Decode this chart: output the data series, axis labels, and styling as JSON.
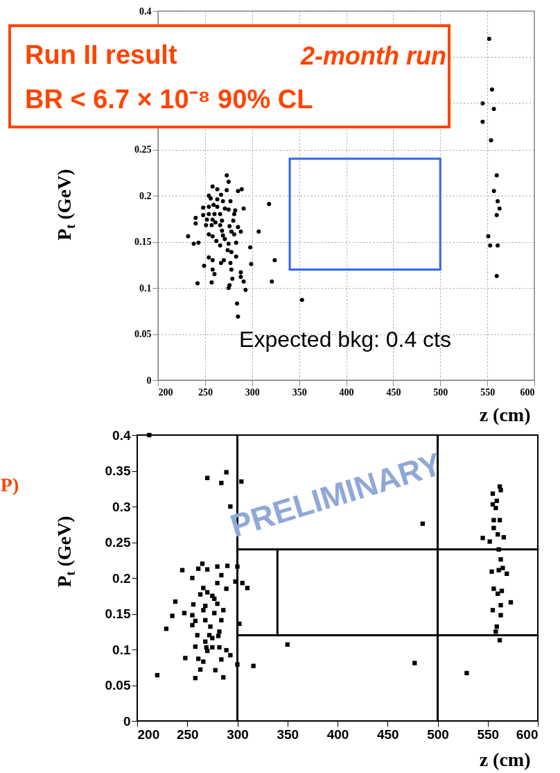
{
  "chart_data": [
    {
      "type": "scatter",
      "xlabel": "z (cm)",
      "ylabel": "P$_{t}$ (GeV)",
      "xlim": [
        200,
        600
      ],
      "ylim": [
        0,
        0.4
      ],
      "xticks": [
        200,
        250,
        300,
        350,
        400,
        450,
        500,
        550,
        600
      ],
      "yticks": [
        0,
        0.05,
        0.1,
        0.15,
        0.2,
        0.25,
        {
          "value": 0.3,
          "label": null
        },
        {
          "value": 0.35,
          "label": null
        },
        0.4
      ],
      "grid": true,
      "annotations": [
        "Run II result",
        "2-month run",
        "BR < 6.7 × 10⁻⁸ 90% CL",
        "Expected bkg: 0.4 cts"
      ],
      "series": [
        {
          "color": "#000000",
          "marker": "circle",
          "x": [
            273,
            275,
            258,
            263,
            273,
            285,
            289,
            267,
            254,
            256,
            263,
            269,
            277,
            259,
            248,
            254,
            263,
            271,
            275,
            282,
            291,
            248,
            254,
            260,
            266,
            281,
            240,
            252,
            258,
            261,
            268,
            280,
            240,
            251,
            257,
            266,
            276,
            285,
            268,
            278,
            288,
            307,
            232,
            254,
            258,
            269,
            281,
            238,
            243,
            262,
            266,
            271,
            275,
            283,
            298,
            274,
            278,
            254,
            258,
            267,
            270,
            277,
            283,
            299,
            249,
            258,
            260,
            278,
            288,
            288,
            279,
            242,
            257,
            291,
            276,
            275,
            293,
            284,
            285,
            318,
            324,
            321,
            353,
            552,
            555,
            545,
            557,
            545,
            554,
            560,
            557,
            561,
            563,
            560,
            551,
            553,
            561,
            560
          ],
          "values": [
            0.222,
            0.215,
            0.21,
            0.207,
            0.206,
            0.205,
            0.207,
            0.201,
            0.2,
            0.197,
            0.196,
            0.194,
            0.194,
            0.19,
            0.187,
            0.188,
            0.188,
            0.186,
            0.185,
            0.184,
            0.186,
            0.179,
            0.18,
            0.18,
            0.18,
            0.18,
            0.176,
            0.174,
            0.174,
            0.171,
            0.173,
            0.173,
            0.17,
            0.168,
            0.168,
            0.168,
            0.167,
            0.166,
            0.162,
            0.161,
            0.161,
            0.161,
            0.156,
            0.158,
            0.156,
            0.157,
            0.158,
            0.148,
            0.149,
            0.151,
            0.146,
            0.153,
            0.148,
            0.149,
            0.144,
            0.141,
            0.139,
            0.133,
            0.13,
            0.127,
            0.13,
            0.127,
            0.134,
            0.126,
            0.124,
            0.12,
            0.115,
            0.12,
            0.117,
            0.112,
            0.11,
            0.105,
            0.106,
            0.107,
            0.103,
            0.1,
            0.098,
            0.083,
            0.069,
            0.191,
            0.13,
            0.107,
            0.087,
            0.37,
            0.315,
            0.3,
            0.294,
            0.28,
            0.26,
            0.222,
            0.205,
            0.194,
            0.186,
            0.179,
            0.156,
            0.146,
            0.146,
            0.113
          ]
        },
        {
          "type": "line",
          "color": "#3366ee",
          "x": [
            340,
            500
          ],
          "values": [
            0.12,
            0.12
          ]
        },
        {
          "type": "line",
          "color": "#3366ee",
          "x": [
            340,
            500
          ],
          "values": [
            0.24,
            0.24
          ]
        },
        {
          "type": "line",
          "color": "#3366ee",
          "x": [
            340,
            340
          ],
          "values": [
            0.12,
            0.24
          ]
        },
        {
          "type": "line",
          "color": "#3366ee",
          "x": [
            500,
            500
          ],
          "values": [
            0.12,
            0.24
          ]
        }
      ]
    },
    {
      "type": "scatter",
      "xlabel": "z (cm)",
      "ylabel": "P$_{t}$ (GeV)",
      "xlim": [
        200,
        600
      ],
      "ylim": [
        0,
        0.4
      ],
      "xticks": [
        200,
        250,
        300,
        350,
        400,
        450,
        500,
        550,
        600
      ],
      "yticks": [
        0,
        0.05,
        0.1,
        0.15,
        0.2,
        0.25,
        0.3,
        0.35,
        0.4
      ],
      "annotations": [
        "PRELIMINARY",
        "P)"
      ],
      "ref_lines": [
        {
          "axis": "x",
          "value": 300,
          "color": "#000000"
        },
        {
          "axis": "x",
          "value": 500,
          "color": "#000000"
        }
      ],
      "series": [
        {
          "color": "#000000",
          "marker": "square",
          "x": [
            212,
            289,
            270,
            284,
            304,
            293,
            265,
            261,
            270,
            245,
            280,
            290,
            300,
            284,
            255,
            298,
            305,
            310,
            266,
            280,
            289,
            263,
            275,
            238,
            256,
            280,
            266,
            277,
            286,
            247,
            235,
            255,
            258,
            268,
            284,
            302,
            255,
            229,
            273,
            282,
            260,
            272,
            281,
            268,
            258,
            275,
            282,
            289,
            270,
            293,
            248,
            261,
            284,
            266,
            300,
            316,
            263,
            278,
            220,
            258,
            286,
            270,
            277,
            268,
            275,
            269,
            485,
            350,
            477,
            562,
            563,
            555,
            559,
            555,
            558,
            556,
            562,
            556,
            545,
            552,
            560,
            566,
            561,
            563,
            554,
            561,
            565,
            569,
            556,
            560,
            564,
            573,
            555,
            563,
            563,
            559,
            558,
            562,
            529
          ],
          "values": [
            0.4,
            0.348,
            0.34,
            0.333,
            0.335,
            0.3,
            0.22,
            0.213,
            0.212,
            0.211,
            0.216,
            0.217,
            0.216,
            0.204,
            0.2,
            0.195,
            0.193,
            0.186,
            0.186,
            0.193,
            0.185,
            0.177,
            0.175,
            0.167,
            0.163,
            0.164,
            0.155,
            0.151,
            0.155,
            0.151,
            0.147,
            0.148,
            0.14,
            0.141,
            0.141,
            0.136,
            0.134,
            0.129,
            0.132,
            0.125,
            0.12,
            0.12,
            0.119,
            0.111,
            0.104,
            0.103,
            0.103,
            0.099,
            0.098,
            0.092,
            0.088,
            0.087,
            0.086,
            0.083,
            0.079,
            0.077,
            0.072,
            0.071,
            0.064,
            0.06,
            0.061,
            0.18,
            0.171,
            0.161,
            0.116,
            0.103,
            0.276,
            0.107,
            0.081,
            0.328,
            0.323,
            0.318,
            0.308,
            0.303,
            0.298,
            0.281,
            0.281,
            0.27,
            0.256,
            0.251,
            0.261,
            0.257,
            0.24,
            0.226,
            0.209,
            0.211,
            0.214,
            0.206,
            0.185,
            0.178,
            0.182,
            0.166,
            0.155,
            0.162,
            0.148,
            0.132,
            0.125,
            0.113,
            0.067
          ]
        },
        {
          "type": "line",
          "color": "#000000",
          "x": [
            300,
            600
          ],
          "values": [
            0.24,
            0.24
          ]
        },
        {
          "type": "line",
          "color": "#000000",
          "x": [
            300,
            600
          ],
          "values": [
            0.12,
            0.12
          ]
        },
        {
          "type": "line",
          "color": "#000000",
          "x": [
            340,
            340
          ],
          "values": [
            0.12,
            0.24
          ]
        }
      ]
    }
  ]
}
